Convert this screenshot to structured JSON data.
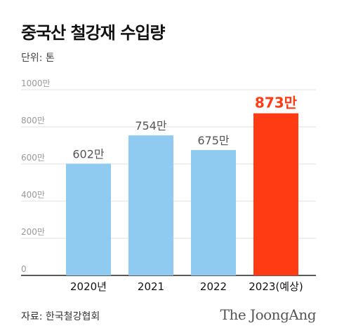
{
  "title": "중국산 철강재 수입량",
  "unit_label": "단위: 톤",
  "source": "자료: 한국철강협회",
  "brand": "The JoongAng",
  "colors": {
    "bar": "#8fcbf0",
    "highlight": "#ff3b14",
    "label": "#555555",
    "highlight_label": "#ff3b14",
    "grid": "#e2e2e2"
  },
  "chart_data": {
    "type": "bar",
    "categories": [
      "2020년",
      "2021",
      "2022",
      "2023(예상)"
    ],
    "values": [
      602,
      754,
      675,
      873
    ],
    "value_labels": [
      "602만",
      "754만",
      "675만",
      "873만"
    ],
    "highlight_index": 3,
    "yticks": [
      0,
      200,
      400,
      600,
      800,
      1000
    ],
    "ytick_labels": [
      "0",
      "200만",
      "400만",
      "600만",
      "800만",
      "1000만"
    ],
    "ylim": [
      0,
      1000
    ],
    "grid": true
  }
}
